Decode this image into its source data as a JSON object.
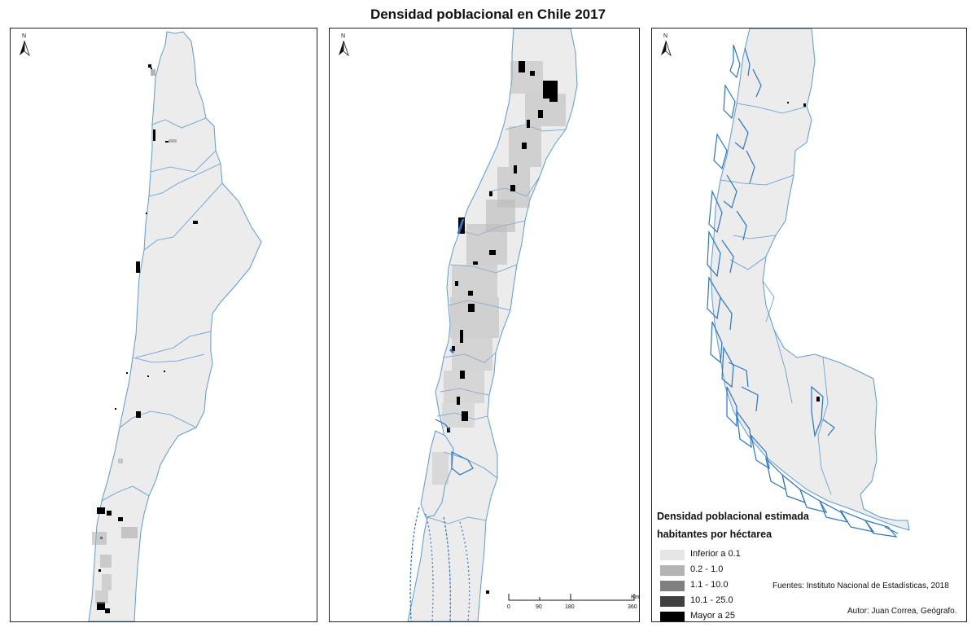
{
  "title": "Densidad poblacional en Chile 2017",
  "north_label": "N",
  "scale": {
    "ticks": [
      "0",
      "90",
      "180",
      "360"
    ],
    "unit": "Km"
  },
  "legend": {
    "title_line1": "Densidad poblacional estimada",
    "title_line2": "habitantes por héctarea",
    "items": [
      {
        "label": "Inferior a 0.1",
        "color": "#e6e6e6"
      },
      {
        "label": "0.2 - 1.0",
        "color": "#b4b4b4"
      },
      {
        "label": "1.1 - 10.0",
        "color": "#808080"
      },
      {
        "label": "10.1 - 25.0",
        "color": "#404040"
      },
      {
        "label": "Mayor a 25",
        "color": "#000000"
      }
    ]
  },
  "credits": {
    "fuentes": "Fuentes: Instituto Nacional de Estadísticas, 2018",
    "autor": "Autor: Juan Correa, Geógrafo."
  },
  "colors": {
    "land": "#ececec",
    "border": "#5b9bd5",
    "water": "#2a74c8",
    "frame": "#222222"
  }
}
